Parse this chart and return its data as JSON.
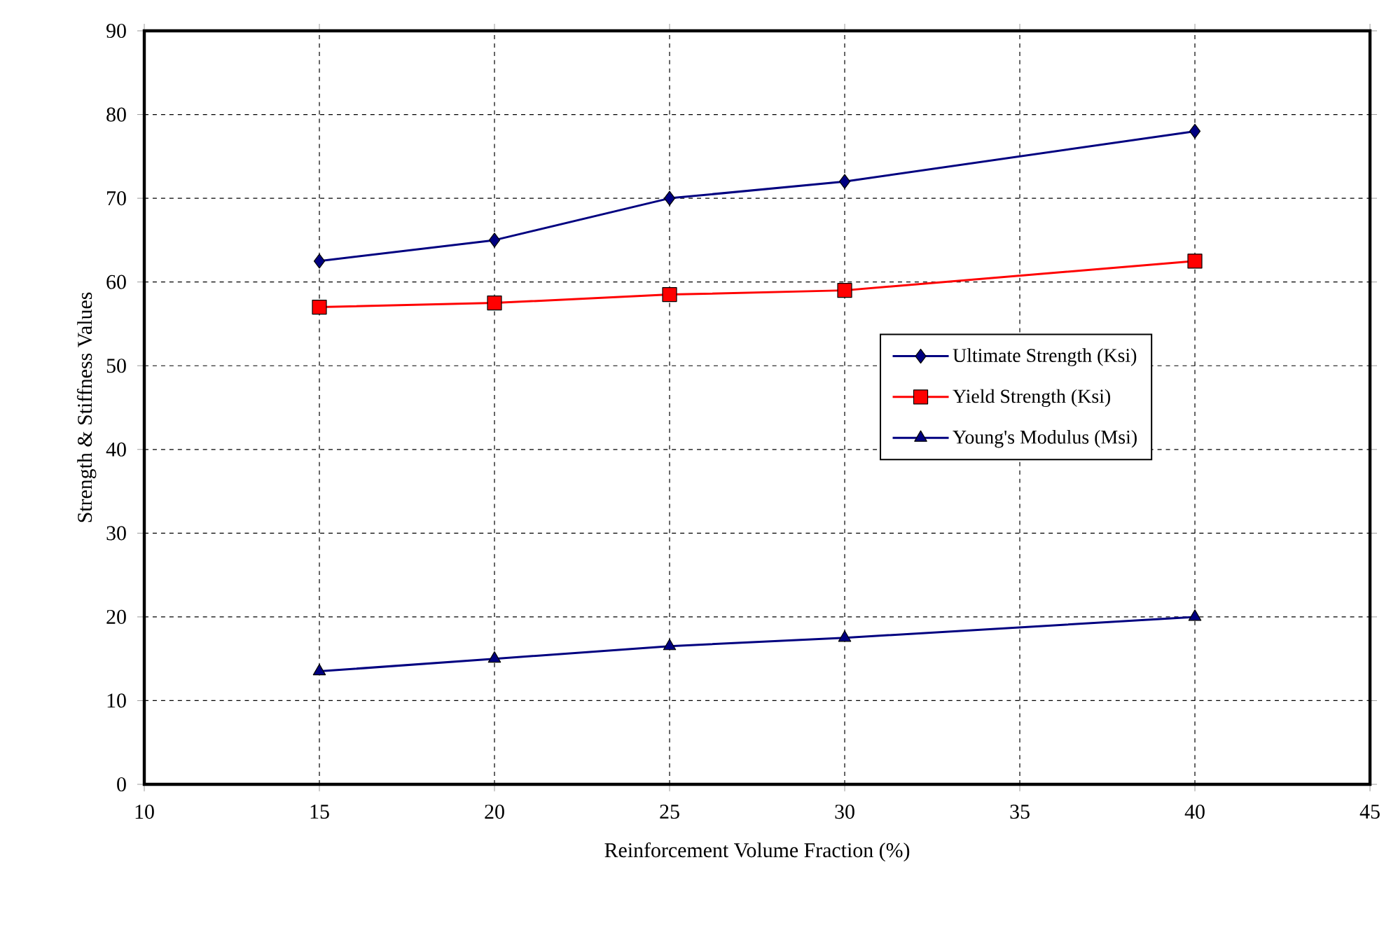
{
  "chart_data": {
    "type": "line",
    "xlabel": "Reinforcement Volume Fraction (%)",
    "ylabel": "Strength & Stiffness Values",
    "x": [
      15,
      20,
      25,
      30,
      40
    ],
    "series": [
      {
        "name": "Ultimate Strength (Ksi)",
        "color": "#000080",
        "marker": "diamond",
        "values": [
          62.5,
          65,
          70,
          72,
          78
        ]
      },
      {
        "name": "Yield Strength (Ksi)",
        "color": "#ff0000",
        "marker": "square",
        "values": [
          57,
          57.5,
          58.5,
          59,
          62.5
        ]
      },
      {
        "name": "Young's Modulus (Msi)",
        "color": "#000080",
        "marker": "triangle",
        "values": [
          13.5,
          15,
          16.5,
          17.5,
          20
        ]
      }
    ],
    "xlim": [
      10,
      45
    ],
    "xticks": [
      10,
      15,
      20,
      25,
      30,
      35,
      40,
      45
    ],
    "ylim": [
      0,
      90
    ],
    "yticks": [
      0,
      10,
      20,
      30,
      40,
      50,
      60,
      70,
      80,
      90
    ],
    "grid": true,
    "legend": "right",
    "line_style": "solid"
  }
}
